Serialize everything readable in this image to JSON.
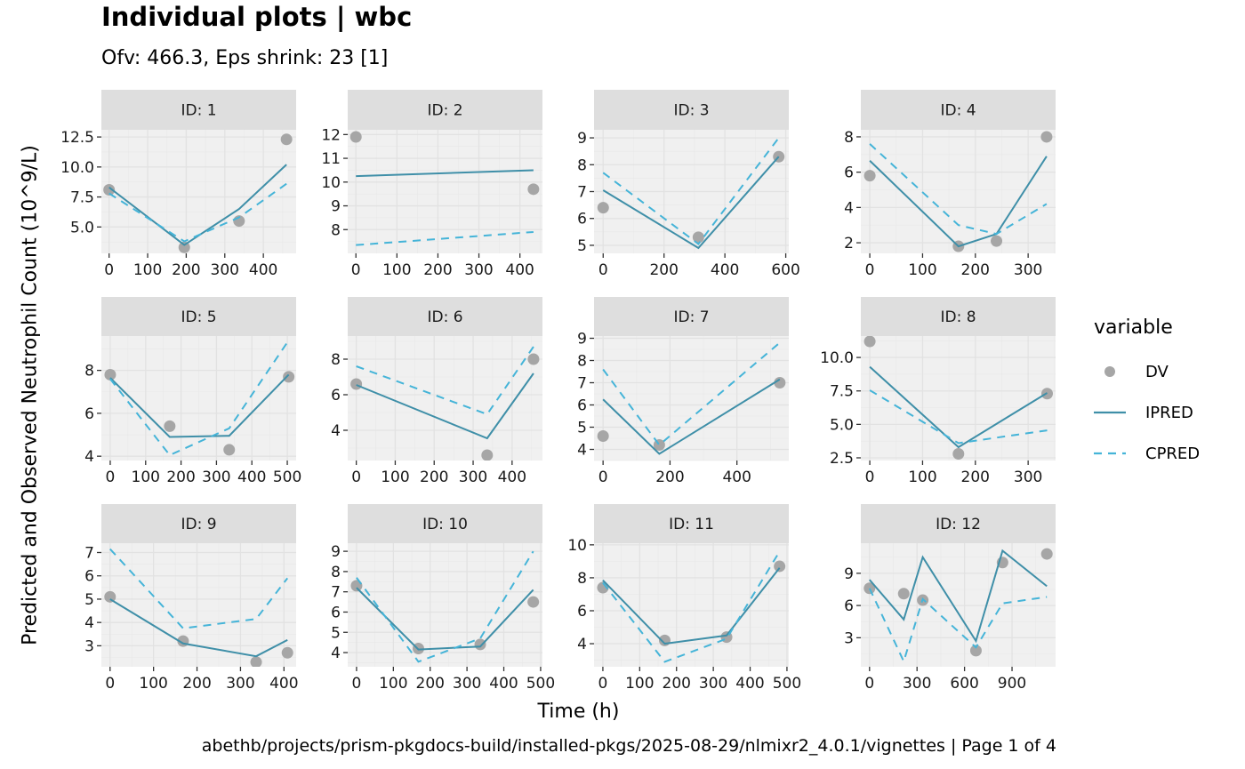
{
  "title": "Individual plots | wbc",
  "subtitle": "Ofv: 466.3, Eps shrink: 23 [1]",
  "xlabel": "Time (h)",
  "ylabel": "Predicted and Observed Neutrophil Count (10^9/L)",
  "caption": "abethb/projects/prism-pkgdocs-build/installed-pkgs/2025-08-29/nlmixr2_4.0.1/vignettes | Page 1 of 4",
  "legend": {
    "title": "variable",
    "items": [
      {
        "label": "DV",
        "type": "point",
        "color": "#a6a6a6"
      },
      {
        "label": "IPRED",
        "type": "solid",
        "color": "#3f8fa8"
      },
      {
        "label": "CPRED",
        "type": "dashed",
        "color": "#45b4d8"
      }
    ]
  },
  "colors": {
    "panel_bg": "#f0f0f0",
    "strip_bg": "#dedede",
    "grid": "#e2e2e2",
    "dv": "#a6a6a6",
    "ipred": "#3f8fa8",
    "cpred": "#45b4d8"
  },
  "chart_data": {
    "type": "line",
    "facet_by": "ID",
    "panels": [
      {
        "strip": "ID: 1",
        "xlim": [
          -20,
          485
        ],
        "ylim": [
          2.8,
          13.1
        ],
        "xticks": [
          0,
          100,
          200,
          300,
          400
        ],
        "xticklabels": [
          "0",
          "100",
          "200",
          "300",
          "400"
        ],
        "yticks": [
          5.0,
          7.5,
          10.0,
          12.5
        ],
        "yticklabels": [
          "5.0",
          "7.5",
          "10.0",
          "12.5"
        ],
        "dv": {
          "x": [
            0,
            195,
            337,
            460
          ],
          "y": [
            8.1,
            3.3,
            5.5,
            12.3
          ]
        },
        "ipred": {
          "x": [
            0,
            195,
            337,
            460
          ],
          "y": [
            8.3,
            3.5,
            6.5,
            10.2
          ]
        },
        "cpred": {
          "x": [
            0,
            195,
            337,
            460
          ],
          "y": [
            7.8,
            3.8,
            5.8,
            8.6
          ]
        }
      },
      {
        "strip": "ID: 2",
        "xlim": [
          -20,
          455
        ],
        "ylim": [
          7.0,
          12.2
        ],
        "xticks": [
          0,
          100,
          200,
          300,
          400
        ],
        "xticklabels": [
          "0",
          "100",
          "200",
          "300",
          "400"
        ],
        "yticks": [
          8,
          9,
          10,
          11,
          12
        ],
        "yticklabels": [
          "8",
          "9",
          "10",
          "11",
          "12"
        ],
        "dv": {
          "x": [
            0,
            433
          ],
          "y": [
            11.9,
            9.7
          ]
        },
        "ipred": {
          "x": [
            0,
            433
          ],
          "y": [
            10.25,
            10.5
          ]
        },
        "cpred": {
          "x": [
            0,
            433
          ],
          "y": [
            7.35,
            7.9
          ]
        }
      },
      {
        "strip": "ID: 3",
        "xlim": [
          -30,
          610
        ],
        "ylim": [
          4.7,
          9.3
        ],
        "xticks": [
          0,
          200,
          400,
          600
        ],
        "xticklabels": [
          "0",
          "200",
          "400",
          "600"
        ],
        "yticks": [
          5,
          6,
          7,
          8,
          9
        ],
        "yticklabels": [
          "5",
          "6",
          "7",
          "8",
          "9"
        ],
        "dv": {
          "x": [
            0,
            313,
            577
          ],
          "y": [
            6.4,
            5.3,
            8.3
          ]
        },
        "ipred": {
          "x": [
            0,
            313,
            577
          ],
          "y": [
            7.05,
            4.9,
            8.3
          ]
        },
        "cpred": {
          "x": [
            0,
            313,
            577
          ],
          "y": [
            7.7,
            5.05,
            9.0
          ]
        }
      },
      {
        "strip": "ID: 4",
        "xlim": [
          -17,
          352
        ],
        "ylim": [
          1.4,
          8.4
        ],
        "xticks": [
          0,
          100,
          200,
          300
        ],
        "xticklabels": [
          "0",
          "100",
          "200",
          "300"
        ],
        "yticks": [
          2,
          4,
          6,
          8
        ],
        "yticklabels": [
          "2",
          "4",
          "6",
          "8"
        ],
        "dv": {
          "x": [
            0,
            168,
            240,
            335
          ],
          "y": [
            5.8,
            1.8,
            2.1,
            8.0
          ]
        },
        "ipred": {
          "x": [
            0,
            168,
            240,
            335
          ],
          "y": [
            6.65,
            1.8,
            2.5,
            6.9
          ]
        },
        "cpred": {
          "x": [
            0,
            168,
            240,
            335
          ],
          "y": [
            7.6,
            3.0,
            2.5,
            4.2
          ]
        }
      },
      {
        "strip": "ID: 5",
        "xlim": [
          -25,
          525
        ],
        "ylim": [
          3.8,
          9.6
        ],
        "xticks": [
          0,
          100,
          200,
          300,
          400,
          500
        ],
        "xticklabels": [
          "0",
          "100",
          "200",
          "300",
          "400",
          "500"
        ],
        "yticks": [
          4,
          6,
          8
        ],
        "yticklabels": [
          "4",
          "6",
          "8"
        ],
        "dv": {
          "x": [
            0,
            168,
            336,
            504
          ],
          "y": [
            7.8,
            5.4,
            4.3,
            7.7
          ]
        },
        "ipred": {
          "x": [
            0,
            168,
            336,
            504
          ],
          "y": [
            7.65,
            4.9,
            4.95,
            7.8
          ]
        },
        "cpred": {
          "x": [
            0,
            168,
            336,
            504
          ],
          "y": [
            7.6,
            4.05,
            5.3,
            9.4
          ]
        }
      },
      {
        "strip": "ID: 6",
        "xlim": [
          -22,
          478
        ],
        "ylim": [
          2.3,
          9.3
        ],
        "xticks": [
          0,
          100,
          200,
          300,
          400
        ],
        "xticklabels": [
          "0",
          "100",
          "200",
          "300",
          "400"
        ],
        "yticks": [
          4,
          6,
          8
        ],
        "yticklabels": [
          "4",
          "6",
          "8"
        ],
        "dv": {
          "x": [
            0,
            336,
            455
          ],
          "y": [
            6.6,
            2.6,
            8.0
          ]
        },
        "ipred": {
          "x": [
            0,
            336,
            455
          ],
          "y": [
            6.55,
            3.55,
            7.2
          ]
        },
        "cpred": {
          "x": [
            0,
            336,
            455
          ],
          "y": [
            7.6,
            4.9,
            8.7
          ]
        }
      },
      {
        "strip": "ID: 7",
        "xlim": [
          -27,
          555
        ],
        "ylim": [
          3.5,
          9.1
        ],
        "xticks": [
          0,
          200,
          400
        ],
        "xticklabels": [
          "0",
          "200",
          "400"
        ],
        "yticks": [
          4,
          5,
          6,
          7,
          8,
          9
        ],
        "yticklabels": [
          "4",
          "5",
          "6",
          "7",
          "8",
          "9"
        ],
        "dv": {
          "x": [
            0,
            168,
            528
          ],
          "y": [
            4.6,
            4.2,
            7.0
          ]
        },
        "ipred": {
          "x": [
            0,
            168,
            528
          ],
          "y": [
            6.25,
            3.8,
            7.15
          ]
        },
        "cpred": {
          "x": [
            0,
            168,
            528
          ],
          "y": [
            7.6,
            4.2,
            8.8
          ]
        }
      },
      {
        "strip": "ID: 8",
        "xlim": [
          -17,
          352
        ],
        "ylim": [
          2.3,
          11.6
        ],
        "xticks": [
          0,
          100,
          200,
          300
        ],
        "xticklabels": [
          "0",
          "100",
          "200",
          "300"
        ],
        "yticks": [
          2.5,
          5.0,
          7.5,
          10.0
        ],
        "yticklabels": [
          "2.5",
          "5.0",
          "7.5",
          "10.0"
        ],
        "dv": {
          "x": [
            0,
            168,
            336
          ],
          "y": [
            11.2,
            2.8,
            7.3
          ]
        },
        "ipred": {
          "x": [
            0,
            168,
            336
          ],
          "y": [
            9.3,
            3.3,
            7.35
          ]
        },
        "cpred": {
          "x": [
            0,
            168,
            336
          ],
          "y": [
            7.55,
            3.6,
            4.55
          ]
        }
      },
      {
        "strip": "ID: 9",
        "xlim": [
          -20,
          428
        ],
        "ylim": [
          2.1,
          7.4
        ],
        "xticks": [
          0,
          100,
          200,
          300,
          400
        ],
        "xticklabels": [
          "0",
          "100",
          "200",
          "300",
          "400"
        ],
        "yticks": [
          3,
          4,
          5,
          6,
          7
        ],
        "yticklabels": [
          "3",
          "4",
          "5",
          "6",
          "7"
        ],
        "dv": {
          "x": [
            0,
            168,
            336,
            408
          ],
          "y": [
            5.1,
            3.2,
            2.3,
            2.7
          ]
        },
        "ipred": {
          "x": [
            0,
            168,
            336,
            408
          ],
          "y": [
            5.0,
            3.1,
            2.55,
            3.25
          ]
        },
        "cpred": {
          "x": [
            0,
            168,
            336,
            408
          ],
          "y": [
            7.15,
            3.75,
            4.15,
            5.9
          ]
        }
      },
      {
        "strip": "ID: 10",
        "xlim": [
          -24,
          505
        ],
        "ylim": [
          3.3,
          9.4
        ],
        "xticks": [
          0,
          100,
          200,
          300,
          400,
          500
        ],
        "xticklabels": [
          "0",
          "100",
          "200",
          "300",
          "400",
          "500"
        ],
        "yticks": [
          4,
          5,
          6,
          7,
          8,
          9
        ],
        "yticklabels": [
          "4",
          "5",
          "6",
          "7",
          "8",
          "9"
        ],
        "dv": {
          "x": [
            0,
            168,
            336,
            480
          ],
          "y": [
            7.3,
            4.2,
            4.4,
            6.5
          ]
        },
        "ipred": {
          "x": [
            0,
            168,
            336,
            480
          ],
          "y": [
            7.2,
            4.15,
            4.3,
            7.1
          ]
        },
        "cpred": {
          "x": [
            0,
            168,
            336,
            480
          ],
          "y": [
            7.7,
            3.55,
            4.7,
            9.0
          ]
        }
      },
      {
        "strip": "ID: 11",
        "xlim": [
          -24,
          505
        ],
        "ylim": [
          2.6,
          10.1
        ],
        "xticks": [
          0,
          100,
          200,
          300,
          400,
          500
        ],
        "xticklabels": [
          "0",
          "100",
          "200",
          "300",
          "400",
          "500"
        ],
        "yticks": [
          4,
          6,
          8,
          10
        ],
        "yticklabels": [
          "4",
          "6",
          "8",
          "10"
        ],
        "dv": {
          "x": [
            0,
            168,
            336,
            480
          ],
          "y": [
            7.4,
            4.2,
            4.4,
            8.7
          ]
        },
        "ipred": {
          "x": [
            0,
            168,
            336,
            480
          ],
          "y": [
            7.85,
            4.0,
            4.5,
            8.6
          ]
        },
        "cpred": {
          "x": [
            0,
            168,
            336,
            480
          ],
          "y": [
            7.7,
            2.9,
            4.3,
            9.6
          ]
        }
      },
      {
        "strip": "ID: 12",
        "xlim": [
          -55,
          1175
        ],
        "ylim": [
          0.3,
          11.8
        ],
        "xticks": [
          0,
          300,
          600,
          900
        ],
        "xticklabels": [
          "0",
          "300",
          "600",
          "900"
        ],
        "yticks": [
          3,
          6,
          9
        ],
        "yticklabels": [
          "3",
          "6",
          "9"
        ],
        "dv": {
          "x": [
            0,
            216,
            336,
            672,
            840,
            1120
          ],
          "y": [
            7.6,
            7.1,
            6.5,
            1.8,
            10.0,
            10.8
          ]
        },
        "ipred": {
          "x": [
            0,
            216,
            336,
            672,
            840,
            1120
          ],
          "y": [
            8.4,
            4.7,
            10.5,
            2.7,
            11.1,
            7.8
          ]
        },
        "cpred": {
          "x": [
            0,
            216,
            336,
            672,
            840,
            1120
          ],
          "y": [
            7.6,
            0.8,
            6.6,
            2.1,
            6.2,
            6.8
          ]
        }
      }
    ]
  }
}
